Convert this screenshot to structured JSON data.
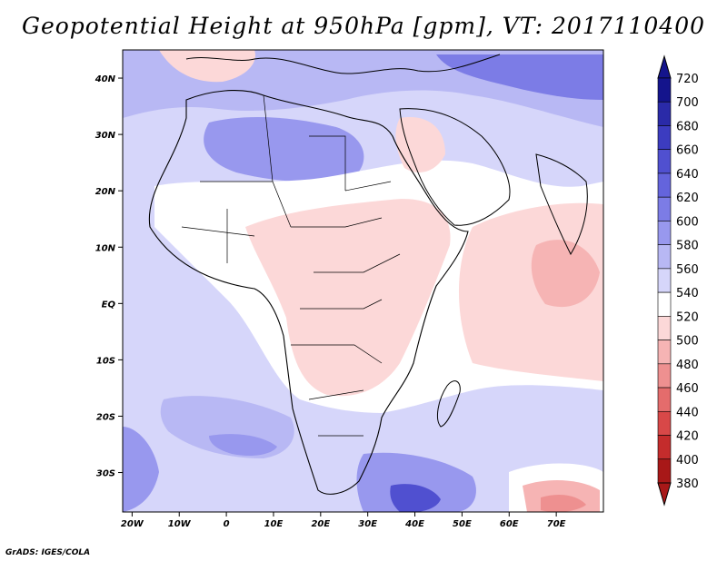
{
  "title": "Geopotential Height at 950hPa [gpm], VT: 2017110400",
  "credit": "GrADS: IGES/COLA",
  "map": {
    "x_ticks": [
      "20W",
      "10W",
      "0",
      "10E",
      "20E",
      "30E",
      "40E",
      "50E",
      "60E",
      "70E"
    ],
    "y_ticks": [
      "40N",
      "30N",
      "20N",
      "10N",
      "EQ",
      "10S",
      "20S",
      "30S"
    ],
    "lon_range": [
      -22,
      80
    ],
    "lat_range": [
      -37,
      45
    ]
  },
  "colorbar": {
    "levels": [
      720,
      700,
      680,
      660,
      640,
      620,
      600,
      580,
      560,
      540,
      520,
      500,
      480,
      460,
      440,
      420,
      400,
      380
    ],
    "colors": [
      "#14148c",
      "#2a2aa8",
      "#3c3cc0",
      "#5050d0",
      "#6464dc",
      "#7c7ce6",
      "#9898ee",
      "#b8b8f4",
      "#d6d6fa",
      "#ffffff",
      "#fcd8d8",
      "#f6b4b4",
      "#ee9090",
      "#e46c6c",
      "#d84848",
      "#c42c2c",
      "#a81818"
    ]
  },
  "field_colors": {
    "bg": "#d6d6fa",
    "low": "#b8b8f4",
    "lower": "#9898ee",
    "deep": "#7c7ce6",
    "deepest": "#5050d0",
    "white": "#ffffff",
    "pink": "#fcd8d8",
    "pink2": "#f6b4b4",
    "red": "#ee9090"
  }
}
